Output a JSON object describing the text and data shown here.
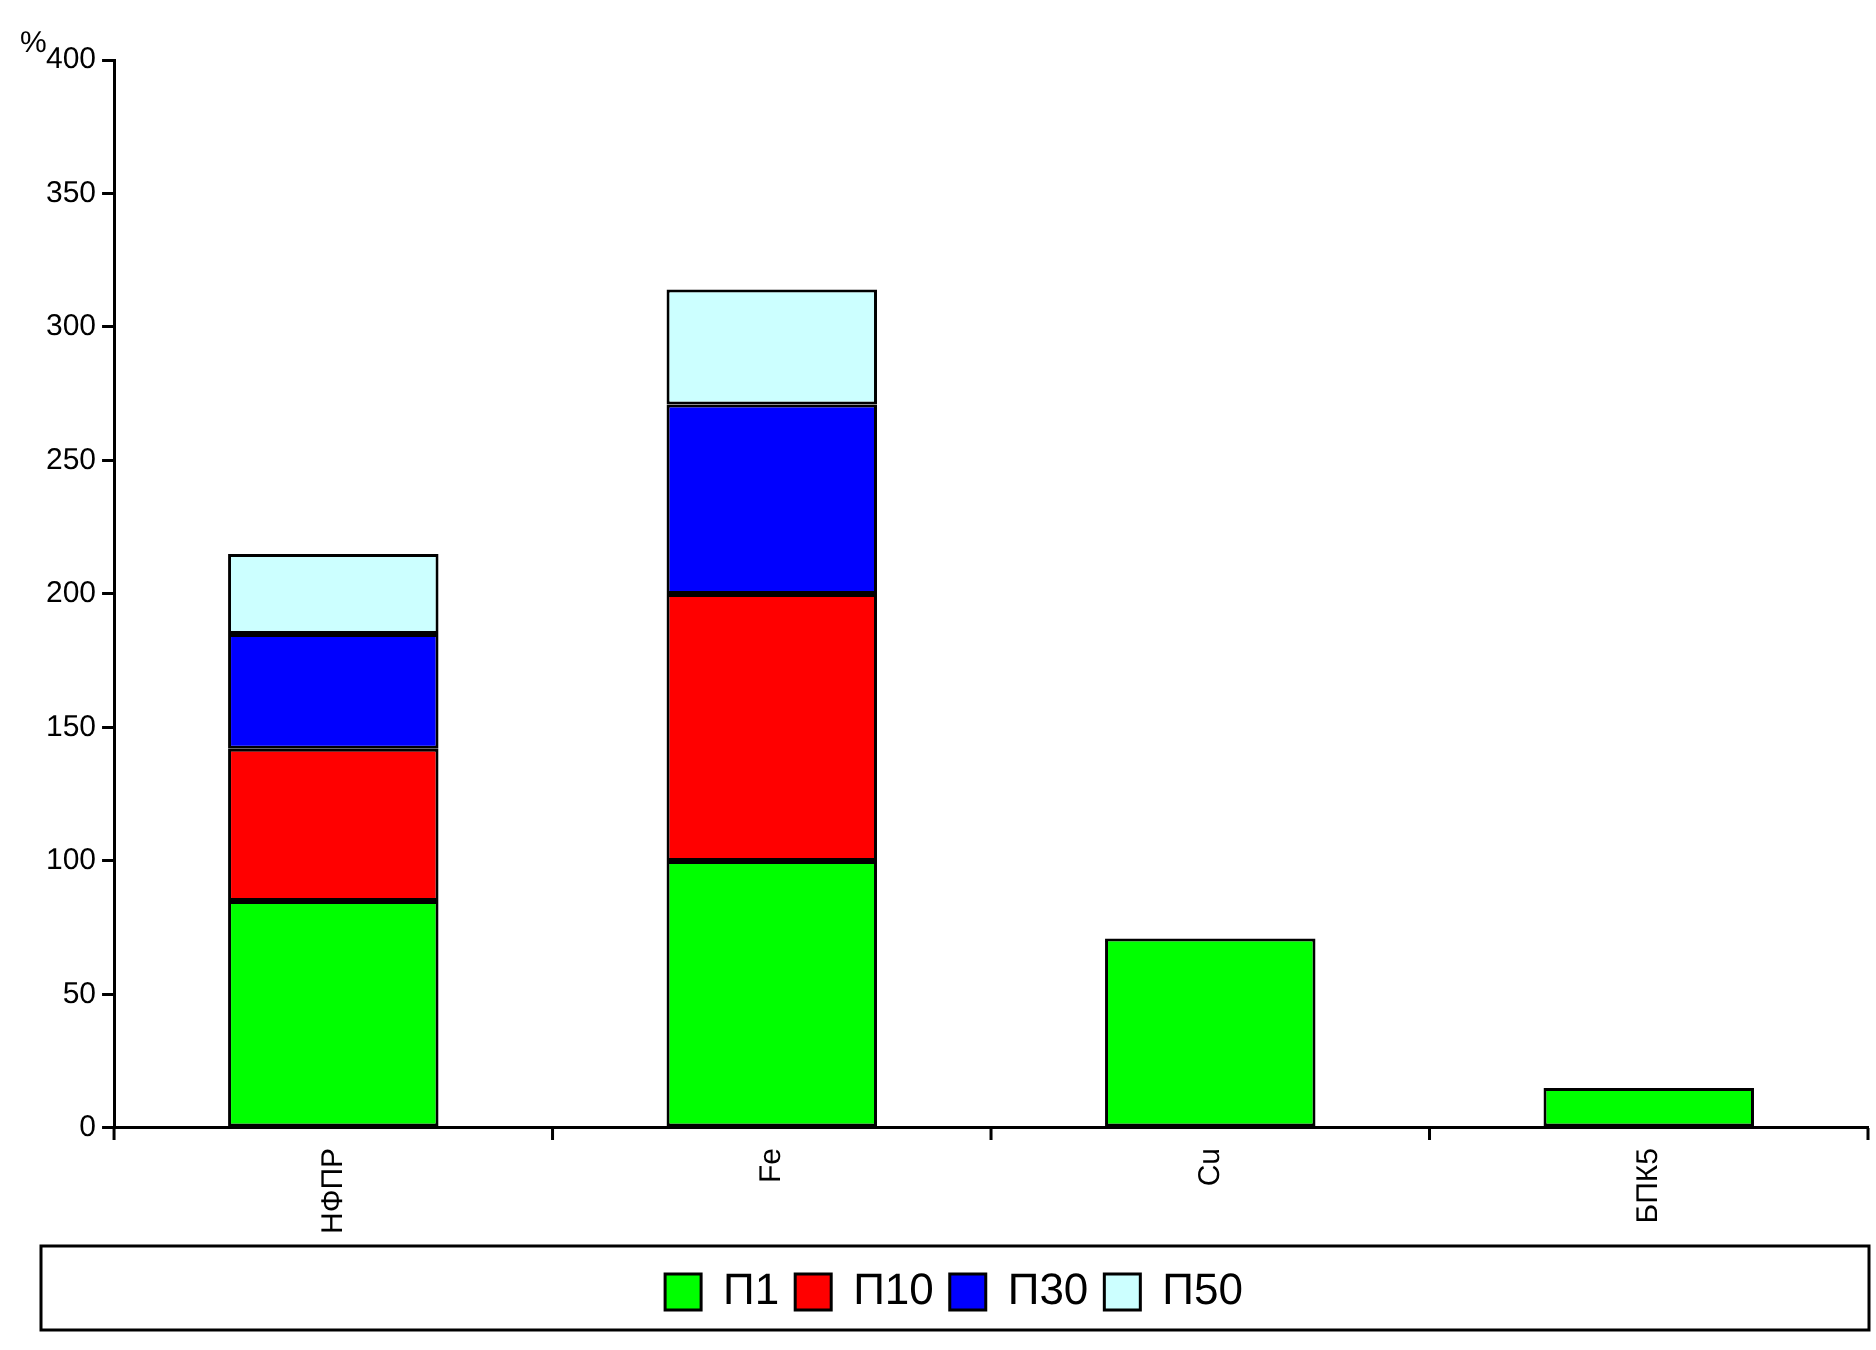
{
  "chart_data": {
    "type": "bar",
    "stacked": true,
    "ylabel": "%",
    "categories": [
      "НФПР",
      "Fe",
      "Cu",
      "БПК5"
    ],
    "series": [
      {
        "name": "П1",
        "color": "#00ff00",
        "values": [
          85,
          100,
          71,
          15
        ]
      },
      {
        "name": "П10",
        "color": "#ff0000",
        "values": [
          57,
          100,
          null,
          null
        ]
      },
      {
        "name": "П30",
        "color": "#0000ff",
        "values": [
          43,
          71,
          null,
          null
        ]
      },
      {
        "name": "П50",
        "color": "#ccffff",
        "values": [
          30,
          43,
          null,
          null
        ]
      }
    ],
    "ylim": [
      0,
      400
    ],
    "yticks": [
      0,
      50,
      100,
      150,
      200,
      250,
      300,
      350,
      400
    ],
    "grid": false,
    "legend": "bottom"
  }
}
